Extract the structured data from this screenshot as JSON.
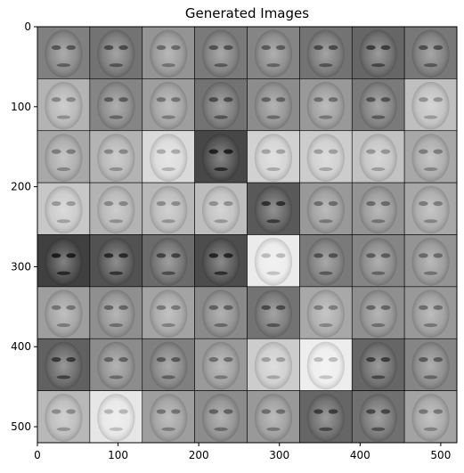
{
  "title": "Generated Images",
  "grid": {
    "rows": 8,
    "cols": 8,
    "tile_brightness": [
      [
        0.5,
        0.45,
        0.58,
        0.48,
        0.52,
        0.45,
        0.4,
        0.47
      ],
      [
        0.7,
        0.52,
        0.62,
        0.45,
        0.55,
        0.6,
        0.48,
        0.75
      ],
      [
        0.66,
        0.7,
        0.85,
        0.28,
        0.82,
        0.8,
        0.76,
        0.66
      ],
      [
        0.78,
        0.7,
        0.72,
        0.74,
        0.35,
        0.6,
        0.58,
        0.66
      ],
      [
        0.25,
        0.32,
        0.42,
        0.3,
        0.92,
        0.48,
        0.52,
        0.58
      ],
      [
        0.62,
        0.56,
        0.64,
        0.54,
        0.45,
        0.66,
        0.56,
        0.6
      ],
      [
        0.38,
        0.55,
        0.5,
        0.6,
        0.8,
        0.93,
        0.4,
        0.52
      ],
      [
        0.72,
        0.9,
        0.62,
        0.55,
        0.6,
        0.4,
        0.44,
        0.64
      ]
    ]
  },
  "axes": {
    "xlim": [
      0,
      520
    ],
    "ylim": [
      520,
      0
    ],
    "x_ticks": [
      {
        "value": 0,
        "label": "0"
      },
      {
        "value": 100,
        "label": "100"
      },
      {
        "value": 200,
        "label": "200"
      },
      {
        "value": 300,
        "label": "300"
      },
      {
        "value": 400,
        "label": "400"
      },
      {
        "value": 500,
        "label": "500"
      }
    ],
    "y_ticks": [
      {
        "value": 0,
        "label": "0"
      },
      {
        "value": 100,
        "label": "100"
      },
      {
        "value": 200,
        "label": "200"
      },
      {
        "value": 300,
        "label": "300"
      },
      {
        "value": 400,
        "label": "400"
      },
      {
        "value": 500,
        "label": "500"
      }
    ]
  }
}
